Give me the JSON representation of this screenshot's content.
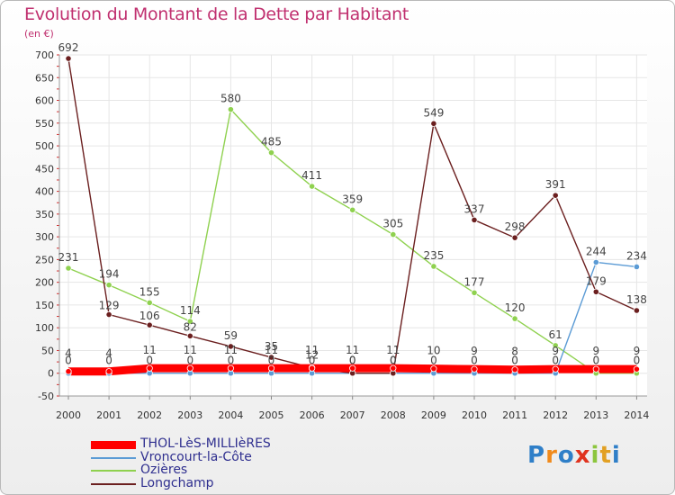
{
  "header": {
    "title": "Evolution du Montant de la Dette par Habitant",
    "unit": "(en €)"
  },
  "logo": {
    "text": "Proxiti",
    "colors": [
      "#2f7fc8",
      "#f08a1c",
      "#2f7fc8",
      "#e0331f",
      "#8cc63e",
      "#e2a023",
      "#2f7fc8"
    ]
  },
  "chart_data": {
    "type": "line",
    "x": [
      "2000",
      "2001",
      "2002",
      "2003",
      "2004",
      "2005",
      "2006",
      "2007",
      "2008",
      "2009",
      "2010",
      "2011",
      "2012",
      "2013",
      "2014"
    ],
    "ylim": [
      -50,
      700
    ],
    "yticks": [
      "-50",
      "0",
      "50",
      "100",
      "150",
      "200",
      "250",
      "300",
      "350",
      "400",
      "450",
      "500",
      "550",
      "600",
      "650",
      "700"
    ],
    "grid": true,
    "legend_position": "bottom",
    "series": [
      {
        "name": "THOL-LèS-MILLIèRES",
        "color": "#ff0000",
        "values": [
          4,
          4,
          11,
          11,
          11,
          11,
          11,
          11,
          11,
          10,
          9,
          8,
          9,
          9,
          9
        ],
        "labels": [
          "4",
          "4",
          "11",
          "11",
          "11",
          "11",
          "11",
          "11",
          "11",
          "10",
          "9",
          "8",
          "9",
          "9",
          "9"
        ]
      },
      {
        "name": "Vroncourt-la-Côte",
        "color": "#5b9bd5",
        "values": [
          0,
          0,
          0,
          0,
          0,
          0,
          0,
          0,
          0,
          0,
          0,
          0,
          0,
          244,
          234
        ],
        "labels": [
          "0",
          "0",
          "0",
          "0",
          "0",
          "0",
          "0",
          "0",
          "0",
          "0",
          "0",
          "0",
          "0",
          "244",
          "234"
        ]
      },
      {
        "name": "Ozières",
        "color": "#8fd14f",
        "values": [
          231,
          194,
          155,
          114,
          580,
          485,
          411,
          359,
          305,
          235,
          177,
          120,
          61,
          0,
          0
        ],
        "labels": [
          "231",
          "194",
          "155",
          "114",
          "580",
          "485",
          "411",
          "359",
          "305",
          "235",
          "177",
          "120",
          "61",
          "0",
          "0"
        ]
      },
      {
        "name": "Longchamp",
        "color": "#6b1f1f",
        "values": [
          692,
          129,
          106,
          82,
          59,
          35,
          12,
          0,
          0,
          549,
          337,
          298,
          391,
          179,
          138
        ],
        "labels": [
          "692",
          "129",
          "106",
          "82",
          "59",
          "35",
          "12",
          "0",
          "0",
          "549",
          "337",
          "298",
          "391",
          "179",
          "138"
        ]
      }
    ]
  }
}
